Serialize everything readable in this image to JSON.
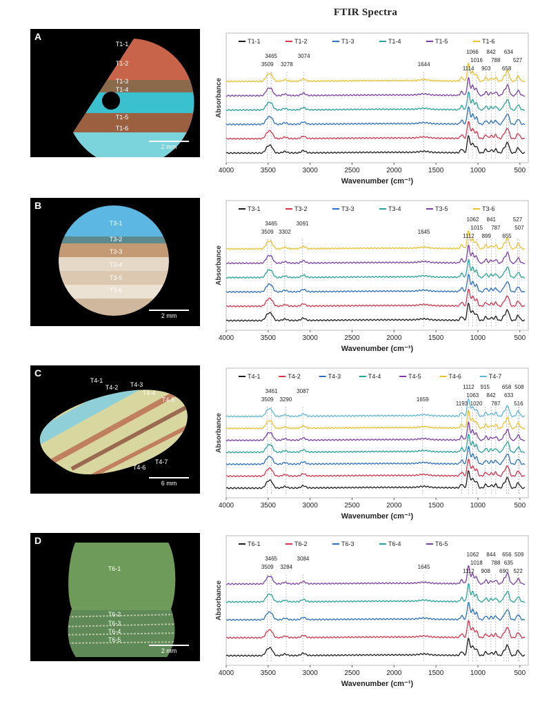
{
  "main_title": "FTIR Spectra",
  "colors": {
    "black": "#1a1a1a",
    "red": "#d6334a",
    "blue": "#2a6ec0",
    "teal": "#25a39a",
    "purple": "#7a3ea6",
    "yellow": "#ecc12d",
    "lightblue": "#5cb7d9"
  },
  "photos": [
    {
      "letter": "A",
      "scale": "2 mm",
      "labels": [
        "T1-1",
        "T1-2",
        "T1-3",
        "T1-4",
        "T1-5",
        "T1-6"
      ]
    },
    {
      "letter": "B",
      "scale": "2 mm",
      "labels": [
        "T3-1",
        "T3-2",
        "T3-3",
        "T3-4",
        "T3-5",
        "T3-6"
      ]
    },
    {
      "letter": "C",
      "scale": "6 mm",
      "labels": [
        "T4-1",
        "T4-2",
        "T4-3",
        "T4-4",
        "T4-5",
        "T4-6",
        "T4-7"
      ]
    },
    {
      "letter": "D",
      "scale": "2 mm",
      "labels": [
        "T6-1",
        "T6-2",
        "T6-3",
        "T6-4",
        "T6-5"
      ]
    }
  ],
  "chart_data": [
    {
      "type": "line",
      "title": "FTIR Spectra",
      "xlabel": "Wavenumber (cm⁻¹)",
      "ylabel": "Absorbance",
      "xlim": [
        4000,
        400
      ],
      "x_reversed": true,
      "xticks": [
        4000,
        3500,
        3000,
        2500,
        2000,
        1500,
        1000,
        500
      ],
      "series": [
        {
          "name": "T1-1",
          "color": "black"
        },
        {
          "name": "T1-2",
          "color": "red"
        },
        {
          "name": "T1-3",
          "color": "blue"
        },
        {
          "name": "T1-4",
          "color": "teal"
        },
        {
          "name": "T1-5",
          "color": "purple"
        },
        {
          "name": "T1-6",
          "color": "yellow"
        }
      ],
      "peaks": [
        3509,
        3465,
        3278,
        3074,
        1644,
        1114,
        1066,
        1016,
        903,
        842,
        788,
        658,
        634,
        527
      ]
    },
    {
      "type": "line",
      "xlabel": "Wavenumber (cm⁻¹)",
      "ylabel": "Absorbance",
      "xlim": [
        4000,
        400
      ],
      "x_reversed": true,
      "xticks": [
        4000,
        3500,
        3000,
        2500,
        2000,
        1500,
        1000,
        500
      ],
      "series": [
        {
          "name": "T3-1",
          "color": "black"
        },
        {
          "name": "T3-2",
          "color": "red"
        },
        {
          "name": "T3-3",
          "color": "blue"
        },
        {
          "name": "T3-4",
          "color": "teal"
        },
        {
          "name": "T3-5",
          "color": "purple"
        },
        {
          "name": "T3-6",
          "color": "yellow"
        }
      ],
      "peaks": [
        3509,
        3465,
        3302,
        3091,
        1645,
        1112,
        1062,
        1015,
        899,
        841,
        787,
        655,
        527,
        507
      ]
    },
    {
      "type": "line",
      "xlabel": "Wavenumber (cm⁻¹)",
      "ylabel": "Absorbance",
      "xlim": [
        4000,
        400
      ],
      "x_reversed": true,
      "xticks": [
        4000,
        3500,
        3000,
        2500,
        2000,
        1500,
        1000,
        500
      ],
      "series": [
        {
          "name": "T4-1",
          "color": "black"
        },
        {
          "name": "T4-2",
          "color": "red"
        },
        {
          "name": "T4-3",
          "color": "blue"
        },
        {
          "name": "T4-4",
          "color": "teal"
        },
        {
          "name": "T4-5",
          "color": "purple"
        },
        {
          "name": "T4-6",
          "color": "yellow"
        },
        {
          "name": "T4-7",
          "color": "lightblue"
        }
      ],
      "peaks": [
        3509,
        3461,
        3290,
        3087,
        1659,
        1193,
        1112,
        1063,
        1020,
        915,
        842,
        787,
        658,
        633,
        516,
        508
      ]
    },
    {
      "type": "line",
      "xlabel": "Wavenumber (cm⁻¹)",
      "ylabel": "Absorbance",
      "xlim": [
        4000,
        400
      ],
      "x_reversed": true,
      "xticks": [
        4000,
        3500,
        3000,
        2500,
        2000,
        1500,
        1000,
        500
      ],
      "series": [
        {
          "name": "T6-1",
          "color": "black"
        },
        {
          "name": "T6-2",
          "color": "red"
        },
        {
          "name": "T6-3",
          "color": "blue"
        },
        {
          "name": "T6-4",
          "color": "teal"
        },
        {
          "name": "T6-5",
          "color": "purple"
        }
      ],
      "peaks": [
        3509,
        3465,
        3284,
        3084,
        1645,
        1112,
        1062,
        1018,
        908,
        844,
        788,
        690,
        656,
        635,
        522,
        509
      ]
    }
  ]
}
